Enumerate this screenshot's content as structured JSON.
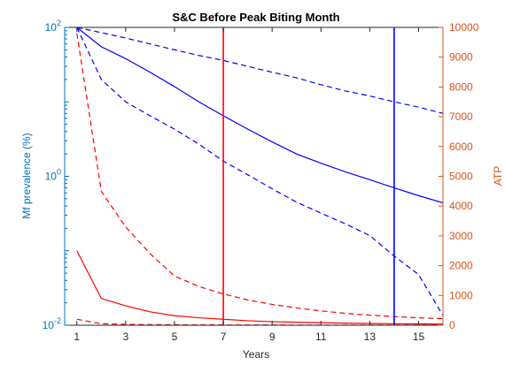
{
  "chart_data": {
    "type": "line",
    "title": "S&C Before Peak Biting Month",
    "xlabel": "Years",
    "ylabel_left": "Mf prevalence (%)",
    "ylabel_right": "ATP",
    "xlim": [
      0.5,
      16
    ],
    "x_ticks": [
      1,
      3,
      5,
      7,
      9,
      11,
      13,
      15
    ],
    "y_left": {
      "scale": "log",
      "lim": [
        0.01,
        100
      ],
      "ticks": [
        0.01,
        1,
        100
      ],
      "tick_labels": [
        {
          "base": "10",
          "exp": "-2"
        },
        {
          "base": "10",
          "exp": "0"
        },
        {
          "base": "10",
          "exp": "2"
        }
      ]
    },
    "y_right": {
      "scale": "linear",
      "lim": [
        0,
        10000
      ],
      "ticks": [
        0,
        1000,
        2000,
        3000,
        4000,
        5000,
        6000,
        7000,
        8000,
        9000,
        10000
      ]
    },
    "colors": {
      "left_axis": "#0072BD",
      "right_axis": "#D95319",
      "blue_series": "#0000FF",
      "red_series": "#FF0000"
    },
    "x": [
      1,
      2,
      3,
      4,
      5,
      6,
      7,
      8,
      9,
      10,
      11,
      12,
      13,
      14,
      15,
      16
    ],
    "series": [
      {
        "axis": "left",
        "color": "blue",
        "style": "solid",
        "values": [
          100,
          55,
          38,
          25,
          16,
          10,
          6.5,
          4.3,
          2.9,
          2.0,
          1.5,
          1.15,
          0.9,
          0.7,
          0.55,
          0.44
        ]
      },
      {
        "axis": "left",
        "color": "blue",
        "style": "dashed",
        "values": [
          100,
          85,
          72,
          60,
          50,
          42,
          36,
          30,
          25,
          21,
          17,
          14,
          12,
          10,
          8.5,
          7.0
        ]
      },
      {
        "axis": "left",
        "color": "blue",
        "style": "dashed",
        "values": [
          100,
          20,
          10,
          6.5,
          4.3,
          2.7,
          1.6,
          1.05,
          0.68,
          0.45,
          0.32,
          0.23,
          0.16,
          0.085,
          0.048,
          0.0135
        ]
      },
      {
        "axis": "right",
        "color": "red",
        "style": "solid",
        "values": [
          2500,
          900,
          650,
          450,
          320,
          250,
          200,
          150,
          120,
          100,
          85,
          70,
          60,
          50,
          45,
          40
        ]
      },
      {
        "axis": "right",
        "color": "red",
        "style": "dashed",
        "values": [
          9800,
          4500,
          3300,
          2400,
          1650,
          1300,
          1050,
          850,
          700,
          580,
          480,
          400,
          340,
          290,
          250,
          220
        ]
      },
      {
        "axis": "right",
        "color": "red",
        "style": "dashed",
        "values": [
          200,
          50,
          30,
          20,
          15,
          12,
          10,
          8,
          7,
          6,
          5,
          5,
          4,
          4,
          3,
          3
        ]
      }
    ],
    "vertical_lines": [
      {
        "x": 7,
        "color": "red"
      },
      {
        "x": 14,
        "color": "blue"
      }
    ],
    "grid": false,
    "legend": "none"
  }
}
